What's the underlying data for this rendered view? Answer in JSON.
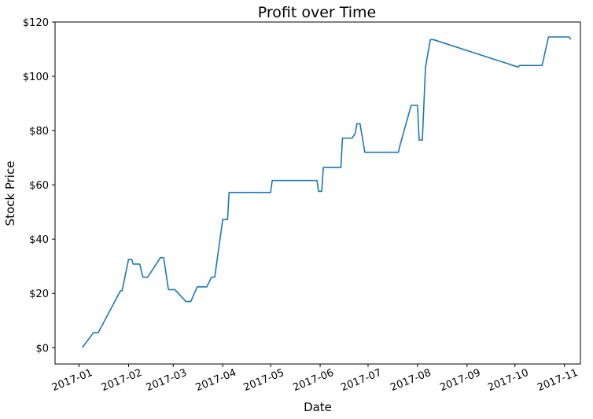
{
  "chart_data": {
    "type": "line",
    "title": "Profit over Time",
    "xlabel": "Date",
    "ylabel": "Stock Price",
    "x_ticks": [
      "2017-01",
      "2017-02",
      "2017-03",
      "2017-04",
      "2017-05",
      "2017-06",
      "2017-07",
      "2017-08",
      "2017-09",
      "2017-10",
      "2017-11"
    ],
    "y_ticks": [
      "$0",
      "$20",
      "$40",
      "$60",
      "$80",
      "$100",
      "$120"
    ],
    "xlim": [
      "2016-12-17",
      "2017-11-11"
    ],
    "ylim": [
      -6,
      120
    ],
    "grid": false,
    "legend": "none",
    "series_color": "#1f77b4",
    "series": [
      {
        "x": [
          "2017-01-03",
          "2017-01-10",
          "2017-01-13",
          "2017-01-27",
          "2017-01-28",
          "2017-02-01",
          "2017-02-03",
          "2017-02-04",
          "2017-02-06",
          "2017-02-08",
          "2017-02-10",
          "2017-02-12",
          "2017-02-13",
          "2017-02-21",
          "2017-02-22",
          "2017-02-23",
          "2017-02-26",
          "2017-02-27",
          "2017-02-28",
          "2017-03-02",
          "2017-03-09",
          "2017-03-12",
          "2017-03-16",
          "2017-03-18",
          "2017-03-20",
          "2017-03-22",
          "2017-03-25",
          "2017-03-27",
          "2017-04-01",
          "2017-04-02",
          "2017-04-04",
          "2017-04-05",
          "2017-04-10",
          "2017-04-30",
          "2017-05-01",
          "2017-05-02",
          "2017-05-30",
          "2017-05-31",
          "2017-06-02",
          "2017-06-03",
          "2017-06-14",
          "2017-06-15",
          "2017-06-21",
          "2017-06-23",
          "2017-06-24",
          "2017-06-26",
          "2017-06-29",
          "2017-07-20",
          "2017-07-21",
          "2017-07-28",
          "2017-08-01",
          "2017-08-02",
          "2017-08-04",
          "2017-08-06",
          "2017-08-09",
          "2017-08-10",
          "2017-08-11",
          "2017-10-03",
          "2017-10-04",
          "2017-10-05",
          "2017-10-18",
          "2017-10-22",
          "2017-11-04",
          "2017-11-05"
        ],
        "values": [
          0,
          5.5,
          5.5,
          21,
          21,
          32.5,
          32.5,
          30.8,
          30.8,
          30.8,
          26,
          26,
          26,
          33.2,
          33.2,
          33.2,
          21.4,
          21.4,
          21.4,
          21.4,
          17,
          17,
          22.4,
          22.4,
          22.4,
          22.4,
          26,
          26,
          47.2,
          47.2,
          47.2,
          57.2,
          57.2,
          57.2,
          57.2,
          61.6,
          61.6,
          57.6,
          57.6,
          66.4,
          66.4,
          77.2,
          77.2,
          79,
          82.5,
          82.5,
          72,
          72,
          74.5,
          89.3,
          89.3,
          76.5,
          76.5,
          103.4,
          113.5,
          113.5,
          113.5,
          103.4,
          104,
          104,
          104,
          114.5,
          114.5,
          113.6
        ]
      }
    ]
  }
}
